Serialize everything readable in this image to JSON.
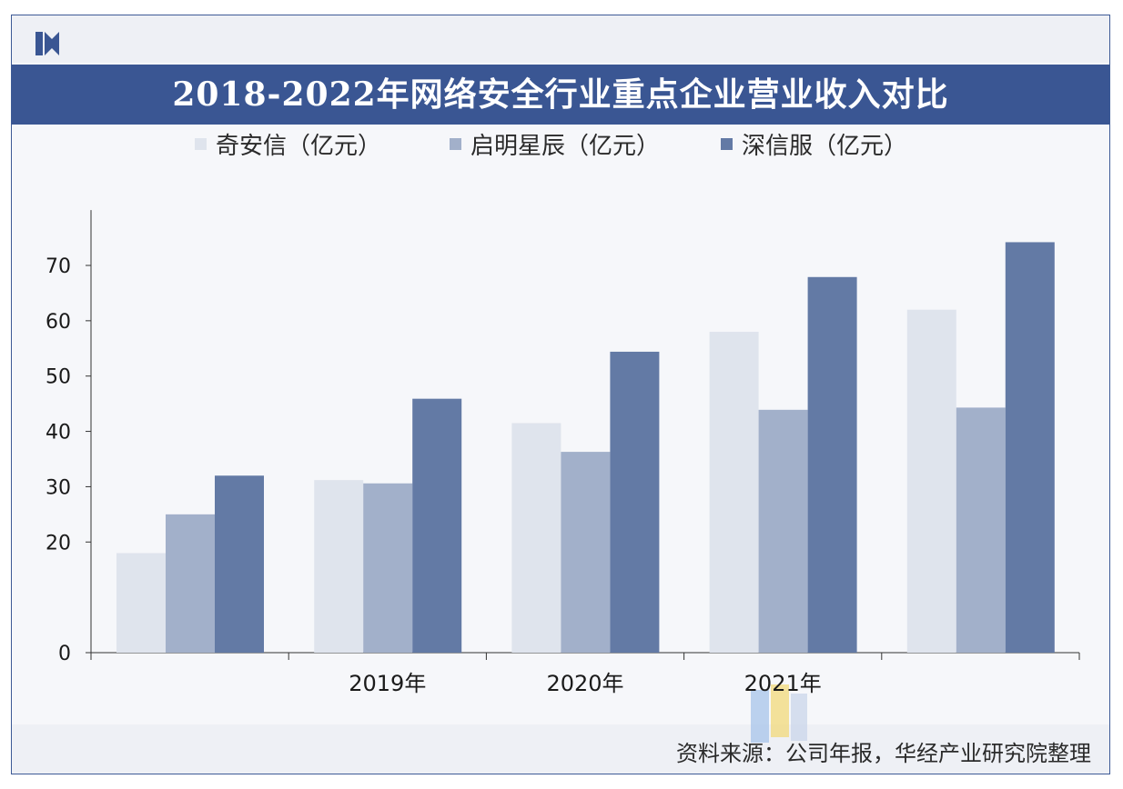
{
  "title": "2018-2022年网络安全行业重点企业营业收入对比",
  "source": "资料来源：公司年报，华经产业研究院整理",
  "chart_data": {
    "type": "bar",
    "title": "2018-2022年网络安全行业重点企业营业收入对比",
    "categories": [
      "",
      "2019年",
      "2020年",
      "2021年",
      ""
    ],
    "series": [
      {
        "name": "奇安信（亿元）",
        "values": [
          18,
          31.2,
          41.5,
          58,
          62
        ],
        "color": "#dfe4ed"
      },
      {
        "name": "启明星辰（亿元）",
        "values": [
          25,
          30.6,
          36.3,
          43.9,
          44.3
        ],
        "color": "#a2b0ca"
      },
      {
        "name": "深信服（亿元）",
        "values": [
          32,
          45.9,
          54.4,
          67.9,
          74.2
        ],
        "color": "#637aa5"
      }
    ],
    "ylim": [
      0,
      80
    ],
    "yticks": [
      0,
      20,
      30,
      40,
      50,
      60,
      70
    ],
    "xlabel": "",
    "ylabel": "",
    "grid": false,
    "legend": "top"
  }
}
